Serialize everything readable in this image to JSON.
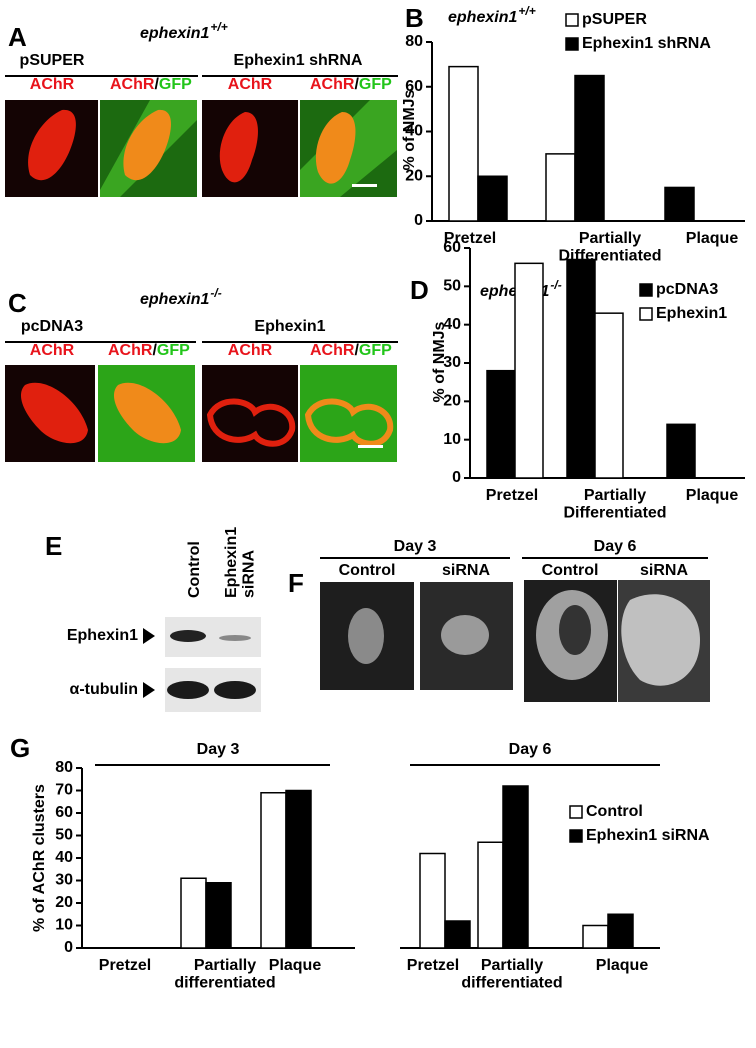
{
  "chart_data": [
    {
      "type": "bar",
      "panel": "B",
      "title": "ephexin1",
      "title_sup": "+/+",
      "y_label": "% of NMJs",
      "categories": [
        "Pretzel",
        "Partially\nDifferentiated",
        "Plaque"
      ],
      "series": [
        {
          "name": "pSUPER",
          "color": "#ffffff",
          "values": [
            69,
            30,
            0
          ]
        },
        {
          "name": "Ephexin1 shRNA",
          "color": "#000000",
          "values": [
            20,
            65,
            15
          ]
        }
      ],
      "ylim": [
        0,
        80
      ],
      "yticks": [
        0,
        20,
        40,
        60,
        80
      ]
    },
    {
      "type": "bar",
      "panel": "D",
      "title": "ephexin1",
      "title_sup": "-/-",
      "y_label": "% of NMJs",
      "categories": [
        "Pretzel",
        "Partially\nDifferentiated",
        "Plaque"
      ],
      "series": [
        {
          "name": "pcDNA3",
          "color": "#000000",
          "values": [
            28,
            57,
            14
          ]
        },
        {
          "name": "Ephexin1",
          "color": "#ffffff",
          "values": [
            56,
            43,
            0
          ]
        }
      ],
      "ylim": [
        0,
        60
      ],
      "yticks": [
        0,
        10,
        20,
        30,
        40,
        50,
        60
      ]
    },
    {
      "type": "bar",
      "panel": "G",
      "y_label": "% of AChR clusters",
      "groups": [
        "Day 3",
        "Day 6"
      ],
      "categories": [
        "Pretzel",
        "Partially\ndifferentiated",
        "Plaque",
        "Pretzel",
        "Partially\ndifferentiated",
        "Plaque"
      ],
      "series": [
        {
          "name": "Control",
          "color": "#ffffff",
          "values": [
            0,
            31,
            69,
            42,
            47,
            10
          ]
        },
        {
          "name": "Ephexin1 siRNA",
          "color": "#000000",
          "values": [
            0,
            29,
            70,
            12,
            72,
            15
          ]
        }
      ],
      "ylim": [
        0,
        80
      ],
      "yticks": [
        0,
        10,
        20,
        30,
        40,
        50,
        60,
        70,
        80
      ]
    }
  ],
  "figure": {
    "A": {
      "letter": "A",
      "genotype": "ephexin1",
      "genotype_sup": "+/+",
      "conditions": [
        "pSUPER",
        "Ephexin1 shRNA"
      ],
      "channel": "AChR",
      "merge_parts": [
        "AChR",
        "/",
        "GFP"
      ]
    },
    "C": {
      "letter": "C",
      "genotype": "ephexin1",
      "genotype_sup": "-/-",
      "conditions": [
        "pcDNA3",
        "Ephexin1"
      ],
      "channel": "AChR",
      "merge_parts": [
        "AChR",
        "/",
        "GFP"
      ]
    },
    "E": {
      "letter": "E",
      "lanes": [
        "Control",
        "Ephexin1\nsiRNA"
      ],
      "bands": [
        "Ephexin1",
        "α-tubulin"
      ]
    },
    "F": {
      "letter": "F",
      "days": [
        "Day 3",
        "Day 6"
      ],
      "conditions": [
        "Control",
        "siRNA",
        "Control",
        "siRNA"
      ]
    }
  }
}
